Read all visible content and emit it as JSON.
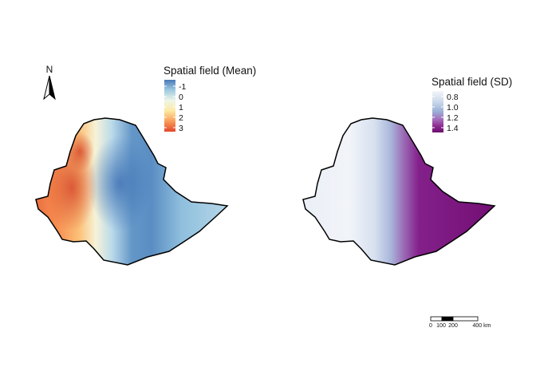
{
  "maps": [
    {
      "id": "mean",
      "legend": {
        "title": "Spatial field (Mean)",
        "ticks": [
          "-1",
          "0",
          "1",
          "2",
          "3"
        ],
        "ramp": [
          "#4a7ab8",
          "#9fcbe2",
          "#eef6e8",
          "#fde9a2",
          "#f99d59",
          "#e2462c"
        ]
      }
    },
    {
      "id": "sd",
      "legend": {
        "title": "Spatial field (SD)",
        "ticks": [
          "0.8",
          "1.0",
          "1.2",
          "1.4"
        ],
        "ramp": [
          "#f4f6fa",
          "#c4d3e8",
          "#9aaed6",
          "#a567b8",
          "#8a2a8e",
          "#6d0d6e"
        ]
      }
    }
  ],
  "north_arrow": {
    "label": "N"
  },
  "scale_bar": {
    "labels": [
      "0",
      "100",
      "200",
      "400 km"
    ]
  },
  "colors": {
    "border": "#000000",
    "background": "#ffffff"
  }
}
